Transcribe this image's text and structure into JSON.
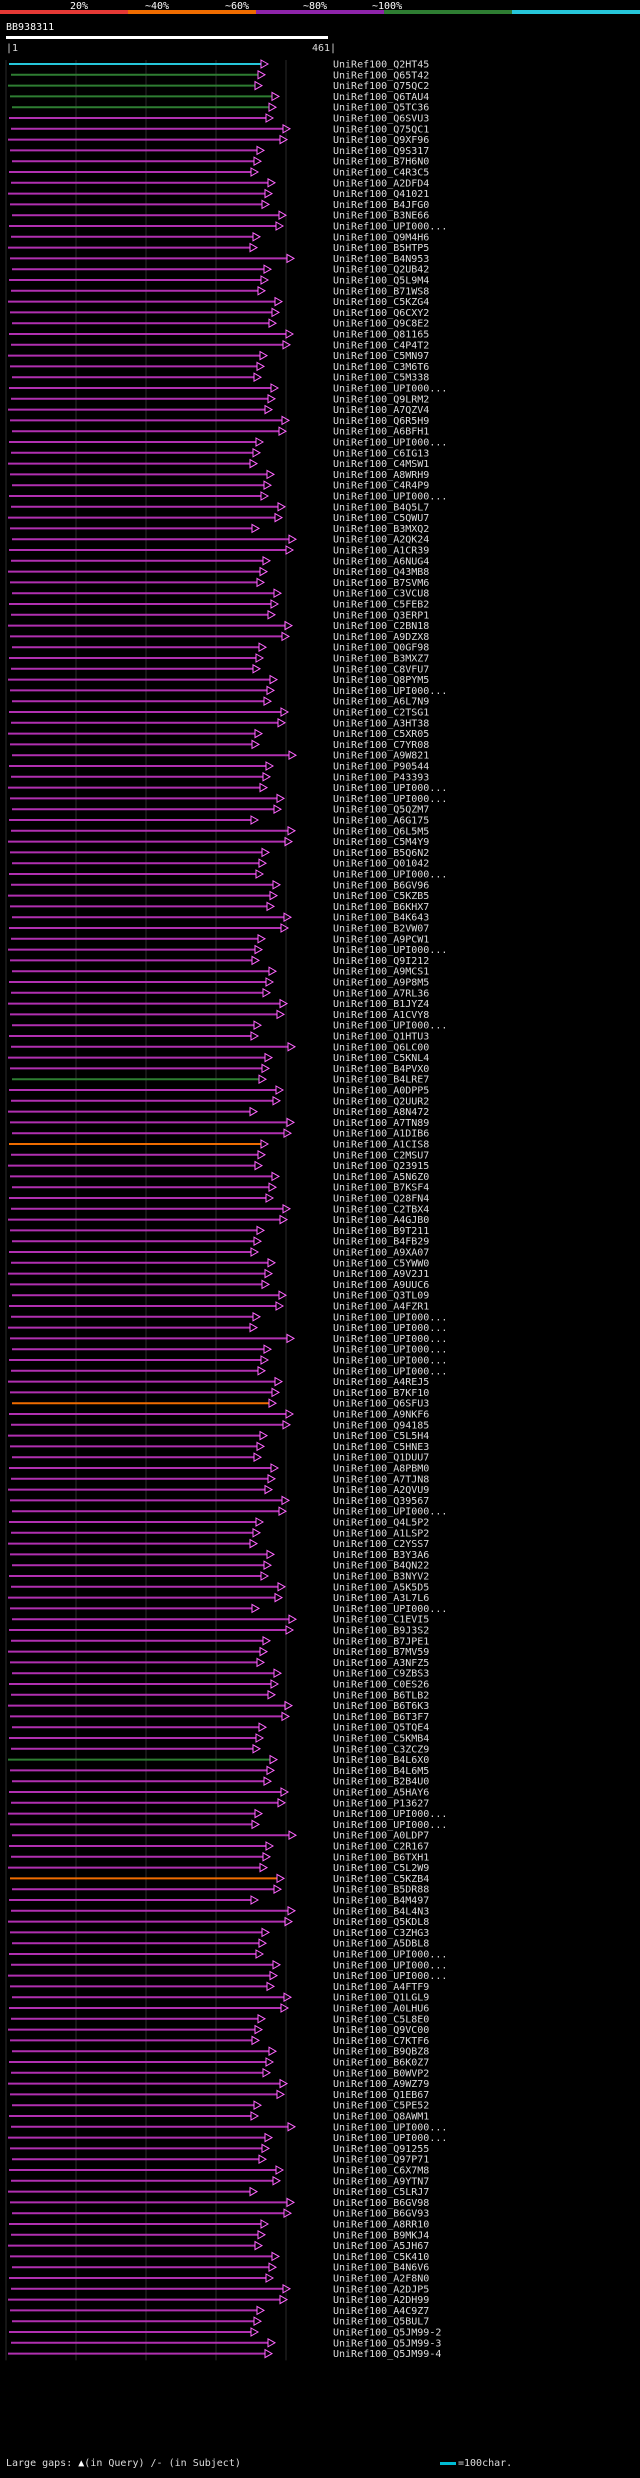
{
  "chart_data": {
    "type": "alignment-overview",
    "query_id": "BB938311",
    "query_start": "1",
    "query_end": "461",
    "identity_scale": [
      {
        "label": "20%",
        "color": "#e53935"
      },
      {
        "label": "~40%",
        "color": "#ef6c00"
      },
      {
        "label": "~60%",
        "color": "#8e24aa"
      },
      {
        "label": "~80%",
        "color": "#2e7d32"
      },
      {
        "label": "~100%",
        "color": "#26c6da"
      }
    ],
    "hits": [
      "UniRef100_Q2HT45",
      "UniRef100_Q65T42",
      "UniRef100_Q75QC2",
      "UniRef100_Q6TAU4",
      "UniRef100_Q5TC36",
      "UniRef100_Q6SVU3",
      "UniRef100_Q75QC1",
      "UniRef100_Q9XF96",
      "UniRef100_Q9S317",
      "UniRef100_B7H6N0",
      "UniRef100_C4R3C5",
      "UniRef100_A2DFD4",
      "UniRef100_Q41021",
      "UniRef100_B4JFG0",
      "UniRef100_B3NE66",
      "UniRef100_UPI000...",
      "UniRef100_Q9M4H6",
      "UniRef100_B5HTP5",
      "UniRef100_B4N953",
      "UniRef100_Q2UB42",
      "UniRef100_Q5L9M4",
      "UniRef100_B71WS8",
      "UniRef100_C5KZG4",
      "UniRef100_Q6CXY2",
      "UniRef100_Q9C8E2",
      "UniRef100_Q81165",
      "UniRef100_C4P4T2",
      "UniRef100_C5MN97",
      "UniRef100_C3M6T6",
      "UniRef100_C5M338",
      "UniRef100_UPI000...",
      "UniRef100_Q9LRM2",
      "UniRef100_A7QZV4",
      "UniRef100_Q6R5H9",
      "UniRef100_A6BFH1",
      "UniRef100_UPI000...",
      "UniRef100_C6IG13",
      "UniRef100_C4MSW1",
      "UniRef100_A8WRH9",
      "UniRef100_C4R4P9",
      "UniRef100_UPI000...",
      "UniRef100_B4Q5L7",
      "UniRef100_C5QWU7",
      "UniRef100_B3MXQ2",
      "UniRef100_A2QK24",
      "UniRef100_A1CR39",
      "UniRef100_A6NUG4",
      "UniRef100_Q43MB8",
      "UniRef100_B7SVM6",
      "UniRef100_C3VCU8",
      "UniRef100_C5FEB2",
      "UniRef100_Q3ERP1",
      "UniRef100_C2BN18",
      "UniRef100_A9DZX8",
      "UniRef100_Q0GF98",
      "UniRef100_B3MXZ7",
      "UniRef100_C8VFU7",
      "UniRef100_Q8PYM5",
      "UniRef100_UPI000...",
      "UniRef100_A6L7N9",
      "UniRef100_C2TSG1",
      "UniRef100_A3HT38",
      "UniRef100_C5XR05",
      "UniRef100_C7YR08",
      "UniRef100_A9W821",
      "UniRef100_P90544",
      "UniRef100_P43393",
      "UniRef100_UPI000...",
      "UniRef100_UPI000...",
      "UniRef100_Q5QZM7",
      "UniRef100_A6G175",
      "UniRef100_Q6L5M5",
      "UniRef100_C5M4Y9",
      "UniRef100_B5Q6N2",
      "UniRef100_Q01042",
      "UniRef100_UPI000...",
      "UniRef100_B6GV96",
      "UniRef100_C5KZB5",
      "UniRef100_B6KHX7",
      "UniRef100_B4K643",
      "UniRef100_B2VW07",
      "UniRef100_A9PCW1",
      "UniRef100_UPI000...",
      "UniRef100_Q9I212",
      "UniRef100_A9MCS1",
      "UniRef100_A9P8M5",
      "UniRef100_A7RL36",
      "UniRef100_B1JYZ4",
      "UniRef100_A1CVY8",
      "UniRef100_UPI000...",
      "UniRef100_Q1HTU3",
      "UniRef100_Q6LC00",
      "UniRef100_C5KNL4",
      "UniRef100_B4PVX0",
      "UniRef100_B4LRE7",
      "UniRef100_A0DPP5",
      "UniRef100_Q2UUR2",
      "UniRef100_A8N472",
      "UniRef100_A7TN89",
      "UniRef100_A1DIB6",
      "UniRef100_A1CIS8",
      "UniRef100_C2MSU7",
      "UniRef100_Q23915",
      "UniRef100_A5N6Z0",
      "UniRef100_B7KSF4",
      "UniRef100_Q28FN4",
      "UniRef100_C2TBX4",
      "UniRef100_A4GJB0",
      "UniRef100_B9T211",
      "UniRef100_B4FB29",
      "UniRef100_A9XA07",
      "UniRef100_C5YWW0",
      "UniRef100_A9V2J1",
      "UniRef100_A9UUC6",
      "UniRef100_Q3TL09",
      "UniRef100_A4FZR1",
      "UniRef100_UPI000...",
      "UniRef100_UPI000...",
      "UniRef100_UPI000...",
      "UniRef100_UPI000...",
      "UniRef100_UPI000...",
      "UniRef100_UPI000...",
      "UniRef100_A4REJ5",
      "UniRef100_B7KF10",
      "UniRef100_Q6SFU3",
      "UniRef100_A9NKF6",
      "UniRef100_Q94185",
      "UniRef100_C5L5H4",
      "UniRef100_C5HNE3",
      "UniRef100_Q1DUU7",
      "UniRef100_A8PBM0",
      "UniRef100_A7TJN8",
      "UniRef100_A2QVU9",
      "UniRef100_Q39567",
      "UniRef100_UPI000...",
      "UniRef100_Q4L5P2",
      "UniRef100_A1LSP2",
      "UniRef100_C2YSS7",
      "UniRef100_B3Y3A6",
      "UniRef100_B4QN22",
      "UniRef100_B3NYV2",
      "UniRef100_A5K5D5",
      "UniRef100_A3L7L6",
      "UniRef100_UPI000...",
      "UniRef100_C1EVI5",
      "UniRef100_B9J3S2",
      "UniRef100_B7JPE1",
      "UniRef100_B7MV59",
      "UniRef100_A3NFZ5",
      "UniRef100_C9ZBS3",
      "UniRef100_C0ES26",
      "UniRef100_B6TLB2",
      "UniRef100_B6T6K3",
      "UniRef100_B6T3F7",
      "UniRef100_Q5TQE4",
      "UniRef100_C5KMB4",
      "UniRef100_C3ZCZ9",
      "UniRef100_B4L6X0",
      "UniRef100_B4L6M5",
      "UniRef100_B2B4U0",
      "UniRef100_A5HAY6",
      "UniRef100_P13627",
      "UniRef100_UPI000...",
      "UniRef100_UPI000...",
      "UniRef100_A0LDP7",
      "UniRef100_C2R167",
      "UniRef100_B6TXH1",
      "UniRef100_C5L2W9",
      "UniRef100_C5KZB4",
      "UniRef100_B5DR88",
      "UniRef100_B4M497",
      "UniRef100_B4L4N3",
      "UniRef100_Q5KDL8",
      "UniRef100_C3ZHG3",
      "UniRef100_A5DBL8",
      "UniRef100_UPI000...",
      "UniRef100_UPI000...",
      "UniRef100_UPI000...",
      "UniRef100_A4FTF9",
      "UniRef100_Q1LGL9",
      "UniRef100_A0LHU6",
      "UniRef100_C5L8E0",
      "UniRef100_Q9VC00",
      "UniRef100_C7KTF6",
      "UniRef100_B9QBZ8",
      "UniRef100_B6K0Z7",
      "UniRef100_B0WVP2",
      "UniRef100_A9WZ79",
      "UniRef100_Q1EB67",
      "UniRef100_C5PE52",
      "UniRef100_Q8AWM1",
      "UniRef100_UPI000...",
      "UniRef100_UPI000...",
      "UniRef100_Q91255",
      "UniRef100_Q97P71",
      "UniRef100_C6X7M8",
      "UniRef100_A9YTN7",
      "UniRef100_C5LRJ7",
      "UniRef100_B6GV98",
      "UniRef100_B6GV93",
      "UniRef100_A8RR10",
      "UniRef100_B9MKJ4",
      "UniRef100_A5JH67",
      "UniRef100_C5K410",
      "UniRef100_B4N6V6",
      "UniRef100_A2F8N0",
      "UniRef100_A2DJP5",
      "UniRef100_A2DH99",
      "UniRef100_A4C9Z7",
      "UniRef100_Q5BUL7",
      "UniRef100_Q5JM99-2",
      "UniRef100_Q5JM99-3",
      "UniRef100_Q5JM99-4"
    ],
    "hit_identity_band": [
      "~100%",
      "~80%",
      "~80%",
      "~80%",
      "~80%",
      "~60%",
      "~60%",
      "~60%",
      "~60%",
      "~60%",
      "~60%",
      "~60%",
      "~60%",
      "~60%",
      "~60%",
      "~60%",
      "~60%",
      "~60%",
      "~60%",
      "~60%",
      "~60%",
      "~60%",
      "~60%",
      "~60%",
      "~60%",
      "~60%",
      "~60%",
      "~60%",
      "~60%",
      "~60%",
      "~60%",
      "~60%",
      "~60%",
      "~60%",
      "~60%",
      "~60%",
      "~60%",
      "~60%",
      "~60%",
      "~60%",
      "~60%",
      "~60%",
      "~60%",
      "~60%",
      "~60%",
      "~60%",
      "~60%",
      "~60%",
      "~60%",
      "~60%",
      "~60%",
      "~60%",
      "~60%",
      "~60%",
      "~60%",
      "~60%",
      "~60%",
      "~60%",
      "~60%",
      "~60%",
      "~60%",
      "~60%",
      "~60%",
      "~60%",
      "~60%",
      "~60%",
      "~60%",
      "~60%",
      "~60%",
      "~60%",
      "~60%",
      "~60%",
      "~60%",
      "~60%",
      "~60%",
      "~60%",
      "~60%",
      "~60%",
      "~60%",
      "~60%",
      "~60%",
      "~60%",
      "~60%",
      "~60%",
      "~60%",
      "~60%",
      "~60%",
      "~60%",
      "~60%",
      "~60%",
      "~60%",
      "~60%",
      "~60%",
      "~60%",
      "~80%",
      "~60%",
      "~60%",
      "~60%",
      "~60%",
      "~60%",
      "~40%",
      "~60%",
      "~60%",
      "~60%",
      "~60%",
      "~60%",
      "~60%",
      "~60%",
      "~60%",
      "~60%",
      "~60%",
      "~60%",
      "~60%",
      "~60%",
      "~60%",
      "~60%",
      "~60%",
      "~60%",
      "~60%",
      "~60%",
      "~60%",
      "~60%",
      "~60%",
      "~60%",
      "~40%",
      "~60%",
      "~60%",
      "~60%",
      "~60%",
      "~60%",
      "~60%",
      "~60%",
      "~60%",
      "~60%",
      "~60%",
      "~60%",
      "~60%",
      "~60%",
      "~60%",
      "~60%",
      "~60%",
      "~60%",
      "~60%",
      "~60%",
      "~60%",
      "~60%",
      "~60%",
      "~60%",
      "~60%",
      "~60%",
      "~60%",
      "~60%",
      "~60%",
      "~60%",
      "~60%",
      "~60%",
      "~60%",
      "~80%",
      "~60%",
      "~60%",
      "~60%",
      "~60%",
      "~60%",
      "~60%",
      "~60%",
      "~60%",
      "~60%",
      "~60%",
      "~40%",
      "~60%",
      "~60%",
      "~60%",
      "~60%",
      "~60%",
      "~60%",
      "~60%",
      "~60%",
      "~60%",
      "~60%",
      "~60%",
      "~60%",
      "~60%",
      "~60%",
      "~60%",
      "~60%",
      "~60%",
      "~60%",
      "~60%",
      "~60%",
      "~60%",
      "~60%",
      "~60%",
      "~60%",
      "~60%",
      "~60%",
      "~60%",
      "~60%",
      "~60%",
      "~60%",
      "~60%",
      "~60%",
      "~60%",
      "~60%",
      "~60%",
      "~60%",
      "~60%",
      "~60%",
      "~60%",
      "~60%",
      "~60%",
      "~60%",
      "~60%",
      "~60%"
    ]
  },
  "colors": {
    "background": "#000000",
    "query_bar": "#ffffff",
    "hit_line_default": "#b030b0",
    "arrowhead": "#ff66ff",
    "grid": "#2a2a2a"
  },
  "legend": {
    "text_prefix": "Large gaps:",
    "in_query": "(in Query)",
    "in_subject": "(in Subject)",
    "scale_label": "=100char."
  }
}
